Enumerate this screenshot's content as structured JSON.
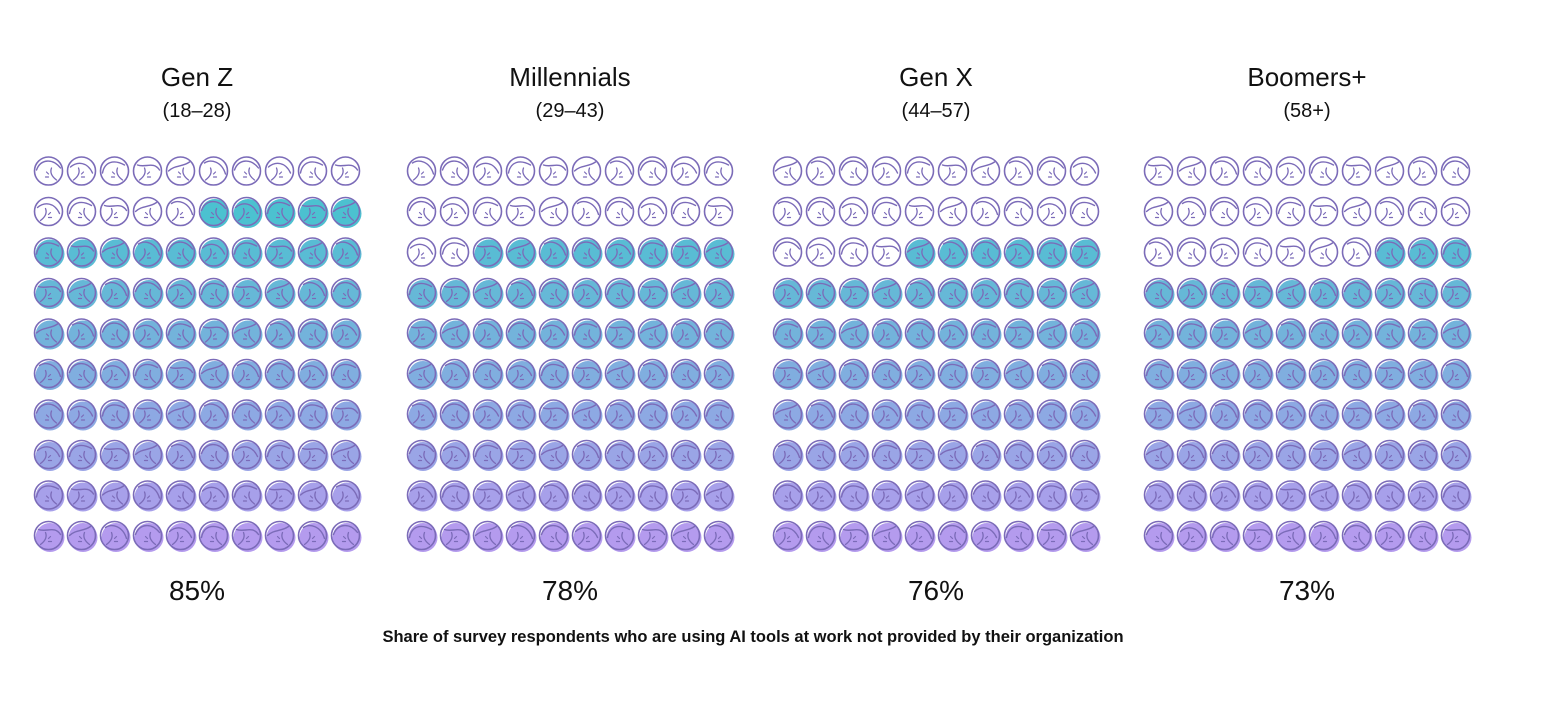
{
  "chart_data": {
    "type": "pictograph",
    "grid": {
      "rows": 10,
      "cols": 10,
      "total_per_group": 100,
      "fill_order": "from-bottom"
    },
    "colors": {
      "outline": "#7b6bb8",
      "empty_fill": "#ffffff",
      "gradient_top": "#3fc6cc",
      "gradient_bottom": "#b49bee"
    },
    "groups": [
      {
        "name": "Gen Z",
        "range": "(18–28)",
        "value": 85,
        "label": "85%"
      },
      {
        "name": "Millennials",
        "range": "(29–43)",
        "value": 78,
        "label": "78%"
      },
      {
        "name": "Gen X",
        "range": "(44–57)",
        "value": 76,
        "label": "76%"
      },
      {
        "name": "Boomers+",
        "range": "(58+)",
        "value": 73,
        "label": "73%"
      }
    ],
    "caption": "Share of survey respondents who are using AI tools at work not provided by their organization"
  }
}
